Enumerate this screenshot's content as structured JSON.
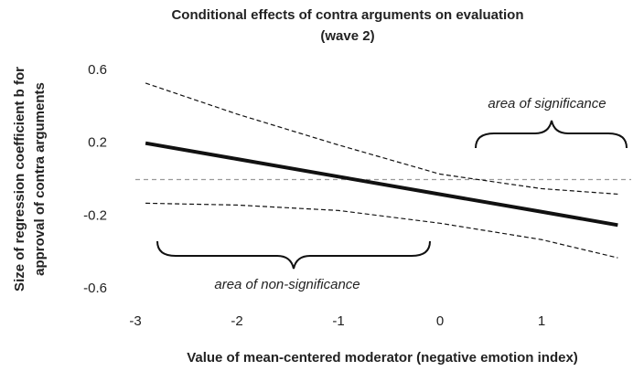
{
  "chart_data": {
    "type": "line",
    "title": [
      "Conditional effects of contra arguments on evaluation",
      "(wave 2)"
    ],
    "y_label": [
      "Size of regression coefficient b for",
      "approval of contra arguments"
    ],
    "x_label": "Value of mean-centered moderator (negative emotion index)",
    "annotations": [
      "area of significance",
      "area of non-significance"
    ],
    "x": [
      -2.9,
      -2,
      -1,
      0,
      1,
      1.75
    ],
    "series": [
      {
        "color": "#111111",
        "dashed": false,
        "values": [
          0.2,
          0.113,
          0.016,
          -0.081,
          -0.177,
          -0.25
        ]
      },
      {
        "color": "#111111",
        "dashed": true,
        "values": [
          0.53,
          0.36,
          0.19,
          0.03,
          -0.05,
          -0.08
        ]
      },
      {
        "color": "#111111",
        "dashed": true,
        "values": [
          -0.13,
          -0.14,
          -0.17,
          -0.24,
          -0.33,
          -0.43
        ]
      }
    ],
    "reference_line": 0,
    "xlim": [
      -3,
      1.9
    ],
    "xticks": [
      -3,
      -2,
      -1,
      0,
      1
    ],
    "ylim": [
      -0.6,
      0.6
    ],
    "yticks": [
      -0.6,
      -0.2,
      0.2,
      0.6
    ]
  }
}
